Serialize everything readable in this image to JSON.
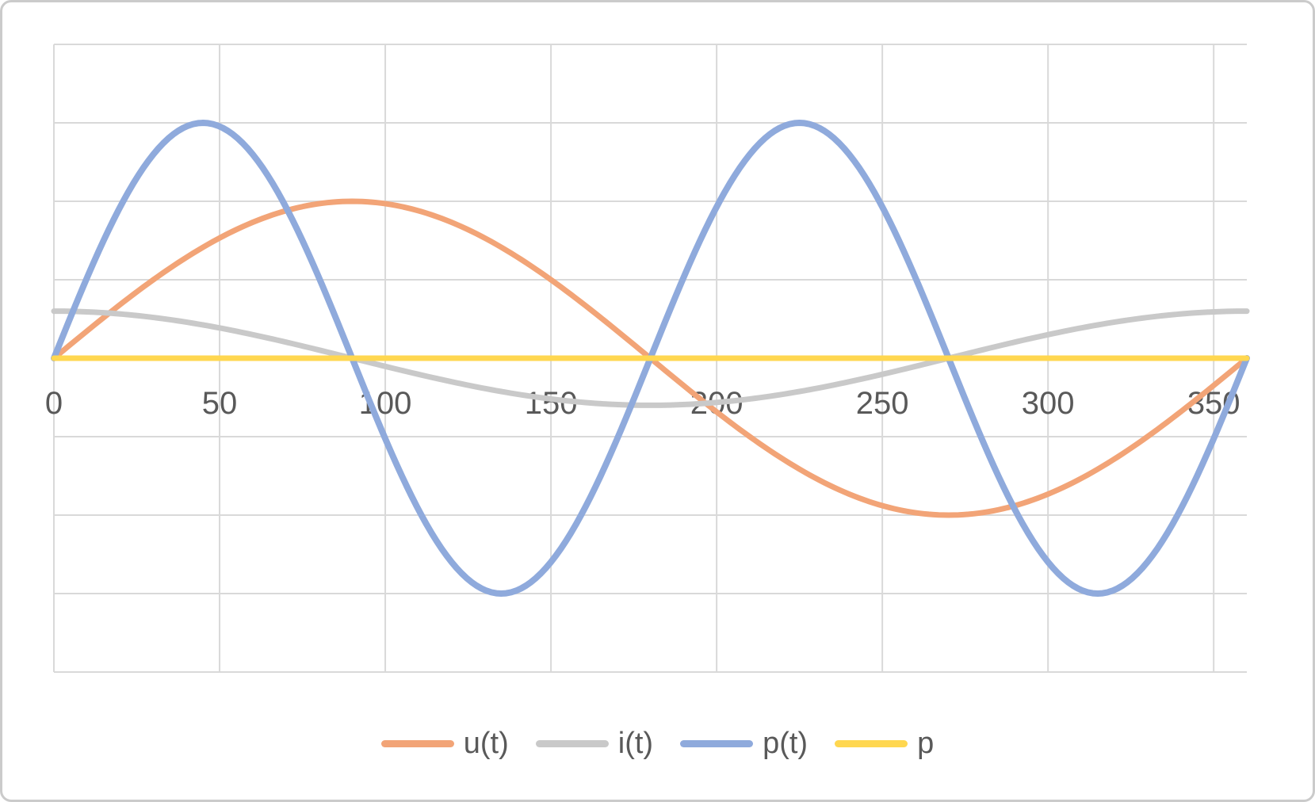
{
  "window": {
    "background_color": "#FFFFFF",
    "border_color": "#CBCBCB"
  },
  "chart_data": {
    "type": "line",
    "title": "",
    "xlabel": "",
    "ylabel": "",
    "x_axis": {
      "min": 0,
      "max": 360,
      "tick_step": 50,
      "tick_labels": [
        "0",
        "50",
        "100",
        "150",
        "200",
        "250",
        "300",
        "350"
      ],
      "label_color": "#595959"
    },
    "y_axis": {
      "min": -4,
      "max": 4,
      "gridline_step": 1,
      "tick_labels_visible": false,
      "zero_line_value": 0
    },
    "grid": {
      "visible": true,
      "color": "#D9D9D9",
      "stroke_width": 2
    },
    "series": [
      {
        "name": "u(t)",
        "color": "#F2A477",
        "shape": "sine",
        "amplitude": 2,
        "freq": 1,
        "phase_deg": 0,
        "stroke_width": 7,
        "x_samples_deg": [
          0,
          30,
          60,
          90,
          120,
          150,
          180,
          210,
          240,
          270,
          300,
          330,
          360
        ],
        "values": [
          0,
          1,
          1.73,
          2,
          1.73,
          1,
          0,
          -1,
          -1.73,
          -2,
          -1.73,
          -1,
          0
        ]
      },
      {
        "name": "i(t)",
        "color": "#C9C9C9",
        "shape": "sine",
        "amplitude": 0.6,
        "freq": 1,
        "phase_deg": 90,
        "stroke_width": 7,
        "x_samples_deg": [
          0,
          30,
          60,
          90,
          120,
          150,
          180,
          210,
          240,
          270,
          300,
          330,
          360
        ],
        "values": [
          0.6,
          0.52,
          0.3,
          0,
          -0.3,
          -0.52,
          -0.6,
          -0.52,
          -0.3,
          0,
          0.3,
          0.52,
          0.6
        ]
      },
      {
        "name": "p(t)",
        "color": "#8FAADC",
        "shape": "sine",
        "amplitude": 3,
        "freq": 2,
        "phase_deg": 0,
        "stroke_width": 8,
        "x_samples_deg": [
          0,
          30,
          60,
          90,
          120,
          150,
          180,
          210,
          240,
          270,
          300,
          330,
          360
        ],
        "values": [
          0,
          2.6,
          2.6,
          0,
          -2.6,
          -2.6,
          0,
          2.6,
          2.6,
          0,
          -2.6,
          -2.6,
          0
        ]
      },
      {
        "name": "p",
        "color": "#FFD750",
        "shape": "constant",
        "value": 0,
        "stroke_width": 7,
        "x_samples_deg": [
          0,
          30,
          60,
          90,
          120,
          150,
          180,
          210,
          240,
          270,
          300,
          330,
          360
        ],
        "values": [
          0,
          0,
          0,
          0,
          0,
          0,
          0,
          0,
          0,
          0,
          0,
          0,
          0
        ]
      }
    ],
    "legend": {
      "position": "bottom",
      "entries": [
        "u(t)",
        "i(t)",
        "p(t)",
        "p"
      ]
    }
  }
}
